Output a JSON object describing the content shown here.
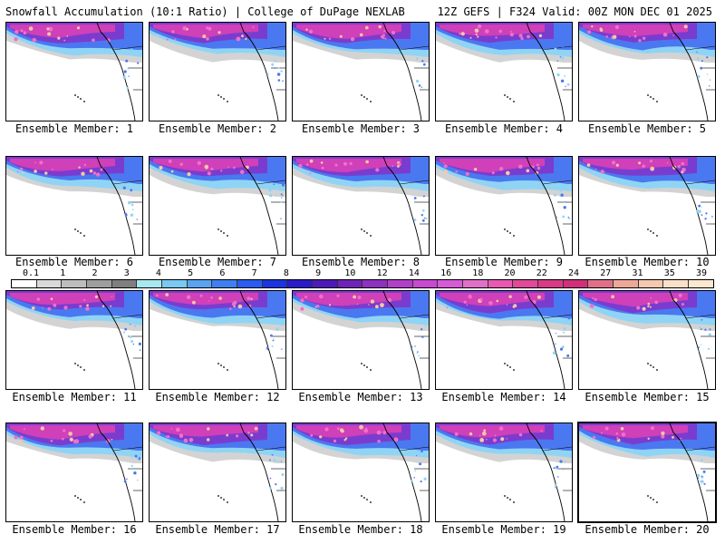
{
  "header": {
    "title_left": "Snowfall Accumulation (10:1 Ratio) | College of DuPage NEXLAB",
    "title_right": "12Z GEFS | F324 Valid: 00Z MON DEC 01 2025"
  },
  "panels": [
    {
      "label": "Ensemble Member: 1"
    },
    {
      "label": "Ensemble Member: 2"
    },
    {
      "label": "Ensemble Member: 3"
    },
    {
      "label": "Ensemble Member: 4"
    },
    {
      "label": "Ensemble Member: 5"
    },
    {
      "label": "Ensemble Member: 6"
    },
    {
      "label": "Ensemble Member: 7"
    },
    {
      "label": "Ensemble Member: 8"
    },
    {
      "label": "Ensemble Member: 9"
    },
    {
      "label": "Ensemble Member: 10"
    },
    {
      "label": "Ensemble Member: 11"
    },
    {
      "label": "Ensemble Member: 12"
    },
    {
      "label": "Ensemble Member: 13"
    },
    {
      "label": "Ensemble Member: 14"
    },
    {
      "label": "Ensemble Member: 15"
    },
    {
      "label": "Ensemble Member: 16"
    },
    {
      "label": "Ensemble Member: 17"
    },
    {
      "label": "Ensemble Member: 18"
    },
    {
      "label": "Ensemble Member: 19"
    },
    {
      "label": "Ensemble Member: 20"
    }
  ],
  "legend": {
    "ticks": [
      "0.1",
      "1",
      "2",
      "3",
      "4",
      "5",
      "6",
      "7",
      "8",
      "9",
      "10",
      "12",
      "14",
      "16",
      "18",
      "20",
      "22",
      "24",
      "27",
      "31",
      "35",
      "39"
    ],
    "colors": [
      "#ffffff",
      "#d9d9d9",
      "#bdbdbd",
      "#9e9e9e",
      "#7f7f7f",
      "#a8e8f0",
      "#79c9f0",
      "#5aa3f0",
      "#3f7ff0",
      "#2a5cf0",
      "#1a34e0",
      "#2a1ac8",
      "#4d1ab8",
      "#6e22b8",
      "#8e30c0",
      "#b040c8",
      "#c84ad0",
      "#d85ad8",
      "#e070c8",
      "#e85ab0",
      "#e04a98",
      "#d83a86",
      "#d0307a",
      "#e0708a",
      "#eda898",
      "#f5c8b0",
      "#fae0c8",
      "#fde8d0"
    ]
  },
  "colors": {
    "ocean": "#ffffff",
    "gray_snow": "#c8c8c8",
    "light_blue": "#8fd4f5",
    "blue": "#4a78f0",
    "purple": "#7a3ccf",
    "magenta": "#d040b8",
    "pink": "#f070c8",
    "peach": "#f6c8a8"
  }
}
